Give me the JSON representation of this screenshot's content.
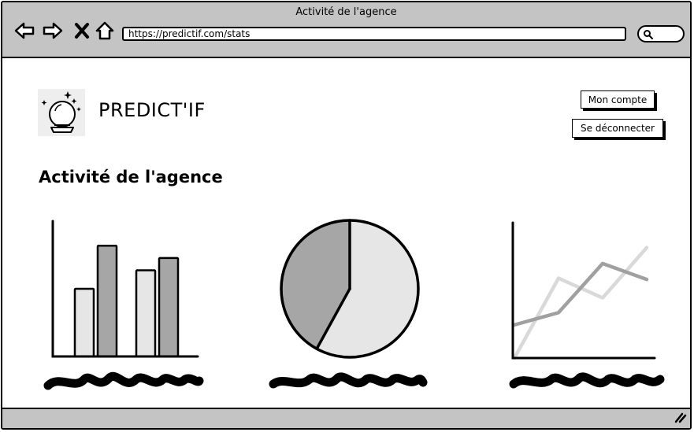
{
  "window": {
    "title": "Activité de l'agence"
  },
  "browser": {
    "url": "https://predictif.com/stats",
    "icons": [
      "back-arrow-icon",
      "forward-arrow-icon",
      "close-x-icon",
      "home-icon",
      "search-icon",
      "resize-grip-icon"
    ]
  },
  "header": {
    "brand": "PREDICT'IF",
    "logo_icon": "crystal-ball-icon",
    "account_button": "Mon compte",
    "logout_button": "Se déconnecter"
  },
  "page": {
    "title": "Activité de l'agence"
  },
  "colors": {
    "chrome": "#c4c4c4",
    "light_gray": "#e6e6e6",
    "dark_gray": "#a6a6a6",
    "line_light": "#d9d9d9",
    "line_dark": "#a0a0a0"
  },
  "chart_data": [
    {
      "type": "bar",
      "categories": [
        "",
        ""
      ],
      "series": [
        {
          "values": [
            5.5,
            7
          ]
        },
        {
          "values": [
            9,
            8
          ]
        }
      ],
      "ylim": [
        0,
        11
      ],
      "title": "",
      "xlabel": "",
      "ylabel": ""
    },
    {
      "type": "pie",
      "values": [
        58,
        42
      ],
      "title": ""
    },
    {
      "type": "line",
      "x": [
        0,
        1,
        2,
        3
      ],
      "series": [
        {
          "values": [
            0,
            6.5,
            4.9,
            9
          ]
        },
        {
          "values": [
            2.7,
            3.7,
            7.7,
            6.4
          ]
        }
      ],
      "ylim": [
        0,
        10
      ],
      "title": "",
      "xlabel": "",
      "ylabel": ""
    }
  ]
}
